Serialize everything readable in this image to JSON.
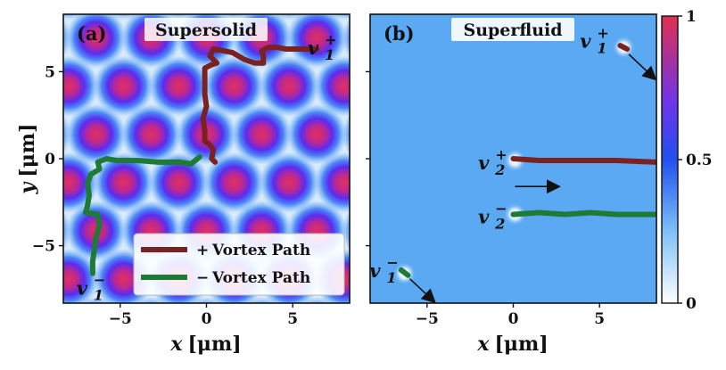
{
  "chart_data": {
    "type": "image-panels",
    "colors": {
      "positive_path": "#7a2222",
      "negative_path": "#1e7a35",
      "background_field": "#5aa9f2",
      "density_peak": "#e0305a"
    },
    "axes": {
      "xlim": [
        -8.3,
        8.3
      ],
      "ylim": [
        -8.3,
        8.3
      ],
      "xticks": [
        -5,
        0,
        5
      ],
      "xtick_labels": [
        "−5",
        "0",
        "5"
      ],
      "yticks": [
        -5,
        0,
        5
      ],
      "ytick_labels": [
        "−5",
        "0",
        "5"
      ],
      "xlabel": {
        "sym": "x",
        "unit": "[μm]"
      },
      "ylabel": {
        "sym": "y",
        "unit": "[μm]"
      }
    },
    "colorbar": {
      "range": [
        0,
        1
      ],
      "ticks": [
        0,
        0.5,
        1
      ],
      "tick_labels": [
        "0",
        "0.5",
        "1"
      ]
    },
    "panels": [
      {
        "label": "(a)",
        "title": "Supersolid",
        "lattice_spacing": 3.2,
        "vortex_labels": [
          {
            "main": "v",
            "sub": "1",
            "sign": "+",
            "x": 6.8,
            "y": 6.4
          },
          {
            "main": "v",
            "sub": "1",
            "sign": "−",
            "x": -6.6,
            "y": -7.4
          }
        ],
        "paths": [
          {
            "sign": "positive",
            "points": [
              [
                6.4,
                6.3
              ],
              [
                5.5,
                6.3
              ],
              [
                4.6,
                6.3
              ],
              [
                4.1,
                6.4
              ],
              [
                3.6,
                6.4
              ],
              [
                3.2,
                6.2
              ],
              [
                3.3,
                5.9
              ],
              [
                3.3,
                5.5
              ],
              [
                2.8,
                5.5
              ],
              [
                2.2,
                5.7
              ],
              [
                1.5,
                6.1
              ],
              [
                1.0,
                6.2
              ],
              [
                0.4,
                6.3
              ],
              [
                0.2,
                5.9
              ],
              [
                0.6,
                5.5
              ],
              [
                0.3,
                5.4
              ],
              [
                -0.1,
                5.2
              ],
              [
                -0.1,
                4.5
              ],
              [
                -0.1,
                3.7
              ],
              [
                0.0,
                3.0
              ],
              [
                -0.2,
                2.3
              ],
              [
                -0.1,
                1.6
              ],
              [
                -0.1,
                1.0
              ],
              [
                0.2,
                0.8
              ],
              [
                0.4,
                0.5
              ],
              [
                0.3,
                0.0
              ],
              [
                0.5,
                -0.2
              ]
            ]
          },
          {
            "sign": "negative",
            "points": [
              [
                -0.4,
                0.1
              ],
              [
                -0.9,
                -0.3
              ],
              [
                -1.6,
                -0.2
              ],
              [
                -2.8,
                -0.2
              ],
              [
                -4.0,
                -0.1
              ],
              [
                -5.2,
                -0.1
              ],
              [
                -5.8,
                0.0
              ],
              [
                -6.3,
                -0.2
              ],
              [
                -6.2,
                -0.6
              ],
              [
                -6.7,
                -0.9
              ],
              [
                -6.9,
                -1.4
              ],
              [
                -6.8,
                -2.1
              ],
              [
                -6.9,
                -2.7
              ],
              [
                -7.0,
                -3.1
              ],
              [
                -6.3,
                -3.2
              ],
              [
                -6.2,
                -3.8
              ],
              [
                -6.4,
                -4.5
              ],
              [
                -6.5,
                -5.2
              ],
              [
                -6.6,
                -5.9
              ],
              [
                -6.6,
                -6.6
              ]
            ]
          }
        ]
      },
      {
        "label": "(b)",
        "title": "Superfluid",
        "vortex_labels": [
          {
            "main": "v",
            "sub": "1",
            "sign": "+",
            "x": 4.8,
            "y": 6.8
          },
          {
            "main": "v",
            "sub": "2",
            "sign": "+",
            "x": -1.1,
            "y": -0.2
          },
          {
            "main": "v",
            "sub": "2",
            "sign": "−",
            "x": -1.1,
            "y": -3.3
          },
          {
            "main": "v",
            "sub": "1",
            "sign": "−",
            "x": -7.4,
            "y": -6.4
          }
        ],
        "cores": [
          [
            6.4,
            6.4
          ],
          [
            0.1,
            -0.1
          ],
          [
            0.1,
            -3.2
          ],
          [
            -6.3,
            -6.6
          ]
        ],
        "paths": [
          {
            "sign": "positive",
            "points": [
              [
                0.0,
                0.0
              ],
              [
                1.5,
                -0.1
              ],
              [
                3.0,
                -0.1
              ],
              [
                4.5,
                -0.1
              ],
              [
                6.0,
                -0.1
              ],
              [
                8.3,
                -0.2
              ]
            ]
          },
          {
            "sign": "negative",
            "points": [
              [
                0.0,
                -3.2
              ],
              [
                1.5,
                -3.1
              ],
              [
                3.0,
                -3.2
              ],
              [
                4.5,
                -3.1
              ],
              [
                6.0,
                -3.2
              ],
              [
                8.3,
                -3.2
              ]
            ]
          },
          {
            "sign": "positive",
            "points": [
              [
                6.2,
                6.5
              ],
              [
                6.6,
                6.3
              ]
            ]
          },
          {
            "sign": "negative",
            "points": [
              [
                -6.5,
                -6.4
              ],
              [
                -6.1,
                -6.7
              ]
            ]
          }
        ],
        "arrows": [
          {
            "from": [
              6.7,
              6.0
            ],
            "to": [
              8.2,
              4.6
            ]
          },
          {
            "from": [
              0.1,
              -1.6
            ],
            "to": [
              2.6,
              -1.6
            ]
          },
          {
            "from": [
              -6.0,
              -6.9
            ],
            "to": [
              -4.6,
              -8.2
            ]
          }
        ]
      }
    ],
    "legend": {
      "placement": "lower-right of panel (a)",
      "entries": [
        {
          "sign": "+",
          "label": "Vortex Path",
          "color": "#7a2222"
        },
        {
          "sign": "−",
          "label": "Vortex Path",
          "color": "#1e7a35"
        }
      ]
    }
  }
}
